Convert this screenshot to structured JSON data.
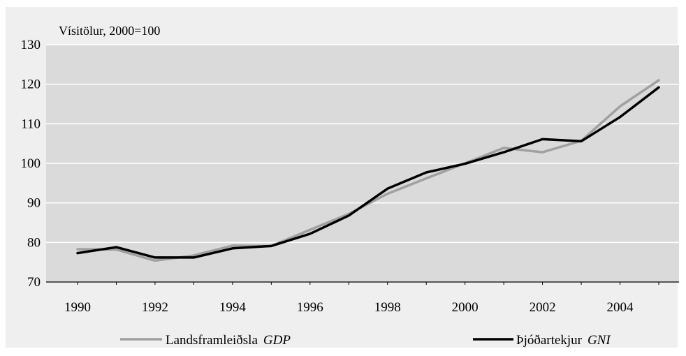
{
  "chart_data": {
    "type": "line",
    "title": "",
    "ylabel": "Vísitölur, 2000=100",
    "xlabel": "",
    "x": [
      1990,
      1991,
      1992,
      1993,
      1994,
      1995,
      1996,
      1997,
      1998,
      1999,
      2000,
      2001,
      2002,
      2003,
      2004,
      2005
    ],
    "x_ticks": [
      "1990",
      "1992",
      "1994",
      "1996",
      "1998",
      "2000",
      "2002",
      "2004"
    ],
    "ylim": [
      70,
      130
    ],
    "y_ticks": [
      "70",
      "80",
      "90",
      "100",
      "110",
      "120",
      "130"
    ],
    "grid": true,
    "legend_placement": "bottom",
    "series": [
      {
        "id": "gdp",
        "name": "Landsframleiðsla",
        "name_italic": "GDP",
        "color": "#a0a0a0",
        "values": [
          78.3,
          78.2,
          75.4,
          76.7,
          79.2,
          79.1,
          83.2,
          87.2,
          92.3,
          96.2,
          100.0,
          103.9,
          102.8,
          105.7,
          114.4,
          121.0
        ]
      },
      {
        "id": "gni",
        "name": "Þjóðartekjur",
        "name_italic": "GNI",
        "color": "#000000",
        "values": [
          77.3,
          78.8,
          76.2,
          76.2,
          78.5,
          79.1,
          82.2,
          86.8,
          93.6,
          97.7,
          99.9,
          102.8,
          106.1,
          105.6,
          111.7,
          119.2
        ]
      }
    ],
    "colors": {
      "outer_background": "#efefef",
      "plot_background": "#dadada",
      "gridline": "#ffffff",
      "axis": "#000000"
    }
  }
}
